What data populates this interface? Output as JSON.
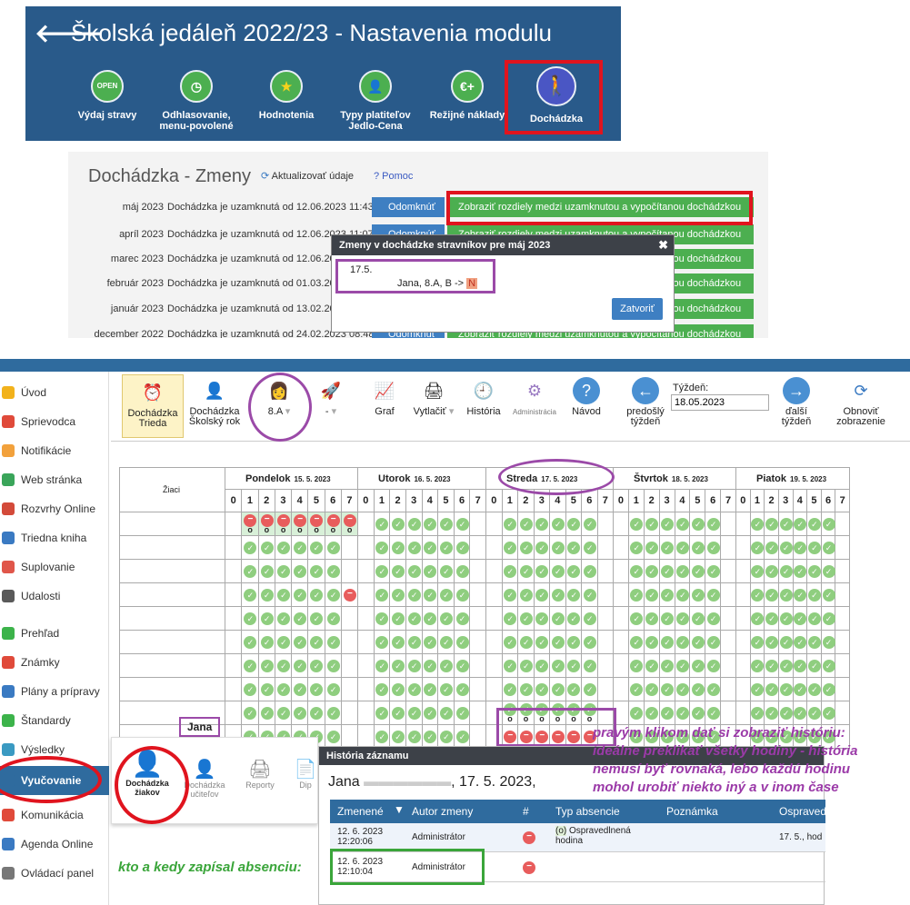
{
  "panel1": {
    "title": "Školská jedáleň 2022/23 - Nastavenia modulu",
    "modules": [
      {
        "label": "Výdaj stravy",
        "icon": "open-sign-icon",
        "color": "#4caf50"
      },
      {
        "label": "Odhlasovanie, menu-povolené",
        "icon": "clock-icon",
        "color": "#4caf50"
      },
      {
        "label": "Hodnotenia",
        "icon": "star-icon",
        "color": "#4caf50"
      },
      {
        "label": "Typy platiteľov Jedlo-Cena",
        "icon": "person-icon",
        "color": "#4caf50"
      },
      {
        "label": "Režijné náklady",
        "icon": "euro-plus-icon",
        "color": "#4caf50"
      },
      {
        "label": "Dochádzka",
        "icon": "walking-person-icon",
        "color": "#4a56c4"
      }
    ],
    "euro_glyph": "€+",
    "open_glyph": "OPEN"
  },
  "panel2": {
    "title": "Dochádzka - Zmeny",
    "refresh": "Aktualizovať údaje",
    "help": "? Pomoc",
    "unlock": "Odomknúť",
    "diff": "Zobraziť rozdiely medzi uzamknutou a vypočítanou dochádzkou",
    "rows": [
      {
        "month": "máj 2023",
        "text": "Dochádzka je uzamknutá od 12.06.2023 11:43"
      },
      {
        "month": "apríl 2023",
        "text": "Dochádzka je uzamknutá od 12.06.2023 11:07"
      },
      {
        "month": "marec 2023",
        "text": "Dochádzka je uzamknutá od 12.06.20"
      },
      {
        "month": "február 2023",
        "text": "Dochádzka je uzamknutá od 01.03.20"
      },
      {
        "month": "január 2023",
        "text": "Dochádzka je uzamknutá od 13.02.20"
      },
      {
        "month": "december 2022",
        "text": "Dochádzka je uzamknutá od 24.02.2023 08:48"
      }
    ],
    "modal": {
      "title": "Zmeny v dochádzke stravníkov pre máj 2023",
      "date": "17.5.",
      "entry": "Jana, 8.A, B ->",
      "flag": "N",
      "close": "Zatvoriť"
    }
  },
  "sidebar": [
    {
      "label": "Úvod",
      "color": "#f2b21c"
    },
    {
      "label": "Sprievodca",
      "color": "#e04a3a"
    },
    {
      "label": "Notifikácie",
      "color": "#f2a13c"
    },
    {
      "label": "Web stránka",
      "color": "#3aa55a"
    },
    {
      "label": "Rozvrhy Online",
      "color": "#d34a3a"
    },
    {
      "label": "Triedna kniha",
      "color": "#3a7ac2"
    },
    {
      "label": "Suplovanie",
      "color": "#e0564a"
    },
    {
      "label": "Udalosti",
      "color": "#5a5a5a"
    },
    {
      "label": "Prehľad",
      "color": "#3cb34a"
    },
    {
      "label": "Známky",
      "color": "#e04a3a"
    },
    {
      "label": "Plány a prípravy",
      "color": "#3a7ac2"
    },
    {
      "label": "Štandardy",
      "color": "#3cb34a"
    },
    {
      "label": "Výsledky",
      "color": "#3a9ac2"
    },
    {
      "label": "Vyučovanie",
      "color": "#2f6b9e"
    },
    {
      "label": "Komunikácia",
      "color": "#e04a3a"
    },
    {
      "label": "Agenda Online",
      "color": "#3a7ac2"
    },
    {
      "label": "Ovládací panel",
      "color": "#777"
    }
  ],
  "toolbar": {
    "items": [
      {
        "label": "Dochádzka Trieda"
      },
      {
        "label": "Dochádzka Školský rok"
      },
      {
        "label": "8.A"
      },
      {
        "label": "-"
      },
      {
        "label": "Graf"
      },
      {
        "label": "Vytlačiť"
      },
      {
        "label": "História"
      },
      {
        "label": "Administrácia"
      },
      {
        "label": "Návod"
      },
      {
        "label": "predošlý týždeň"
      },
      {
        "label": "ďalší týždeň"
      },
      {
        "label": "Obnoviť zobrazenie"
      }
    ],
    "week_label": "Týždeň:",
    "week_value": "18.05.2023"
  },
  "grid": {
    "students_header": "Žiaci",
    "days": [
      {
        "name": "Pondelok",
        "date": "15. 5. 2023"
      },
      {
        "name": "Utorok",
        "date": "16. 5. 2023"
      },
      {
        "name": "Streda",
        "date": "17. 5. 2023"
      },
      {
        "name": "Štvrtok",
        "date": "18. 5. 2023"
      },
      {
        "name": "Piatok",
        "date": "19. 5. 2023"
      }
    ],
    "hours": [
      "0",
      "1",
      "2",
      "3",
      "4",
      "5",
      "6",
      "7"
    ],
    "jana": "Jana",
    "zero": "o"
  },
  "popup": {
    "items": [
      "Dochádzka žiakov",
      "Dochádzka učiteľov",
      "Reporty",
      "Dip"
    ]
  },
  "history": {
    "title": "História záznamu",
    "subtitle_name": "Jana",
    "subtitle_date": ", 17. 5. 2023,",
    "headers": [
      "Zmenené",
      "Autor zmeny",
      "#",
      "Typ absencie",
      "Poznámka",
      "Ospraved"
    ],
    "rows": [
      {
        "changed": "12. 6. 2023 12:20:06",
        "author": "Administrátor",
        "type_code": "(o)",
        "type": "Ospravedlnená hodina",
        "note": "",
        "excused": "17. 5., hod"
      },
      {
        "changed": "12. 6. 2023 12:10:04",
        "author": "Administrátor",
        "type_code": "",
        "type": "",
        "note": "",
        "excused": ""
      }
    ]
  },
  "annotations": {
    "right": "pravým klikom dať si zobraziť  históriu: ideálne preklikať všetky hodiny - história nemusí byť rovnaká, lebo každú hodinu mohol urobiť niekto iný a v inom čase",
    "left": "kto a kedy zapísal absenciu:"
  }
}
